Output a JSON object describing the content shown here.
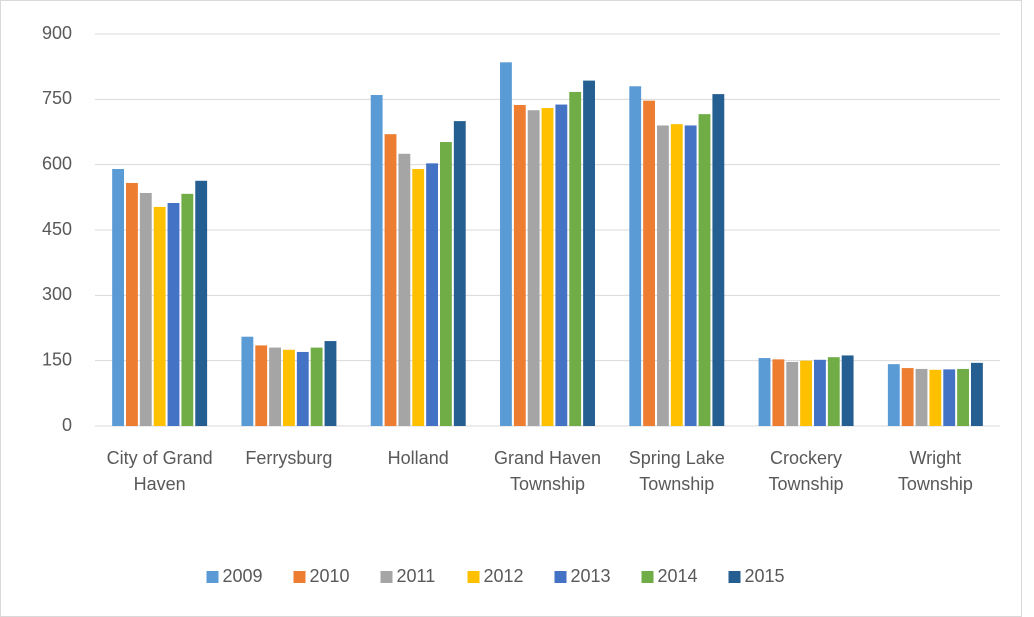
{
  "chart_data": {
    "type": "bar",
    "categories": [
      "City of Grand Haven",
      "Ferrysburg",
      "Holland",
      "Grand Haven Township",
      "Spring Lake Township",
      "Crockery Township",
      "Wright Township"
    ],
    "series": [
      {
        "name": "2009",
        "color": "#5b9bd5",
        "values": [
          590,
          205,
          760,
          835,
          780,
          156,
          142
        ]
      },
      {
        "name": "2010",
        "color": "#ed7d31",
        "values": [
          558,
          185,
          670,
          737,
          747,
          153,
          133
        ]
      },
      {
        "name": "2011",
        "color": "#a5a5a5",
        "values": [
          535,
          180,
          625,
          725,
          690,
          147,
          131
        ]
      },
      {
        "name": "2012",
        "color": "#ffc000",
        "values": [
          503,
          175,
          590,
          730,
          693,
          150,
          129
        ]
      },
      {
        "name": "2013",
        "color": "#4472c4",
        "values": [
          512,
          170,
          603,
          738,
          690,
          152,
          130
        ]
      },
      {
        "name": "2014",
        "color": "#70ad47",
        "values": [
          533,
          180,
          652,
          767,
          716,
          158,
          131
        ]
      },
      {
        "name": "2015",
        "color": "#255e91",
        "values": [
          563,
          195,
          700,
          793,
          762,
          162,
          145
        ]
      }
    ],
    "ylim": [
      0,
      900
    ],
    "yticks": [
      0,
      150,
      300,
      450,
      600,
      750,
      900
    ],
    "grid": true,
    "legend": "bottom"
  }
}
